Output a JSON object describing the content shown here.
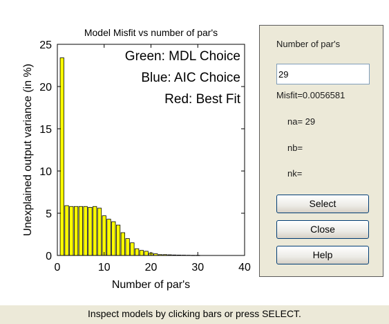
{
  "chart_data": {
    "type": "bar",
    "title": "Model Misfit vs number of par's",
    "xlabel": "Number of par's",
    "ylabel": "Unexplained output variance (in %)",
    "xlim": [
      0,
      40
    ],
    "ylim": [
      0,
      25
    ],
    "xticks": [
      0,
      10,
      20,
      30,
      40
    ],
    "yticks": [
      0,
      5,
      10,
      15,
      20,
      25
    ],
    "grid": false,
    "bar_color": "#ffff00",
    "annotations": [
      "Green: MDL Choice",
      "Blue: AIC Choice",
      "Red: Best Fit"
    ],
    "x": [
      1,
      2,
      3,
      4,
      5,
      6,
      7,
      8,
      9,
      10,
      11,
      12,
      13,
      14,
      15,
      16,
      17,
      18,
      19,
      20,
      21,
      22,
      23,
      24,
      25,
      26,
      27,
      28,
      29,
      30
    ],
    "values": [
      23.4,
      5.9,
      5.8,
      5.8,
      5.8,
      5.8,
      5.7,
      5.8,
      5.6,
      4.7,
      4.3,
      4.0,
      3.6,
      2.7,
      2.0,
      1.5,
      0.8,
      0.6,
      0.5,
      0.3,
      0.2,
      0.1,
      0.1,
      0.08,
      0.06,
      0.05,
      0.04,
      0.03,
      0.02,
      0.02
    ]
  },
  "panel": {
    "title": "Number of par's",
    "input_value": "29",
    "misfit": "Misfit=0.0056581",
    "na": "na= 29",
    "nb": "nb=",
    "nk": "nk=",
    "select_label": "Select",
    "close_label": "Close",
    "help_label": "Help"
  },
  "status": "Inspect models by clicking bars or press SELECT."
}
